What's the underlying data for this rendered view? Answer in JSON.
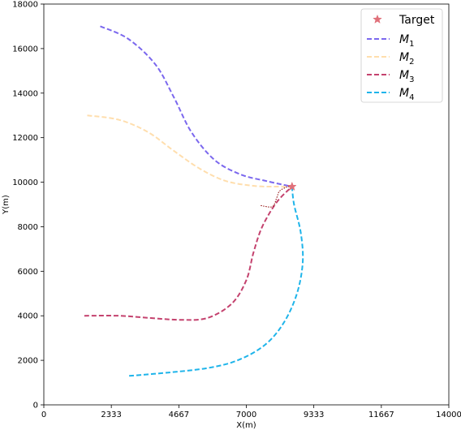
{
  "chart_data": {
    "type": "line",
    "title": "",
    "xlabel": "X(m)",
    "ylabel": "Y(m)",
    "xlim": [
      0,
      14000
    ],
    "ylim": [
      0,
      18000
    ],
    "x_ticks": [
      0,
      2333,
      4667,
      7000,
      9333,
      11667,
      14000
    ],
    "x_tick_labels": [
      "0",
      "2333",
      "4667",
      "7000",
      "9333",
      "11667",
      "14000"
    ],
    "y_ticks": [
      0,
      2000,
      4000,
      6000,
      8000,
      10000,
      12000,
      14000,
      16000,
      18000
    ],
    "y_tick_labels": [
      "0",
      "2000",
      "4000",
      "6000",
      "8000",
      "10000",
      "12000",
      "14000",
      "16000",
      "18000"
    ],
    "grid": false,
    "legend_position": "top-right",
    "target": {
      "name": "Target",
      "x": 8580,
      "y": 9800,
      "color": "#e0707a",
      "marker": "star"
    },
    "series": [
      {
        "name": "M1",
        "color": "#7b68ee",
        "style": "dashed",
        "x": [
          1950,
          2900,
          3850,
          4500,
          5100,
          5900,
          6800,
          7700,
          8580
        ],
        "y": [
          17000,
          16450,
          15300,
          13800,
          12250,
          11000,
          10350,
          10050,
          9800
        ]
      },
      {
        "name": "M2",
        "color": "#ffdead",
        "style": "dashed",
        "x": [
          1500,
          2600,
          3600,
          4500,
          5400,
          6300,
          7300,
          8100,
          8580
        ],
        "y": [
          13000,
          12800,
          12250,
          11400,
          10600,
          10050,
          9830,
          9800,
          9800
        ]
      },
      {
        "name": "M3",
        "color": "#c4426e",
        "style": "dashed",
        "x": [
          1400,
          2600,
          3700,
          4700,
          5650,
          6500,
          7000,
          7250,
          7550,
          8050,
          8580
        ],
        "y": [
          4000,
          4000,
          3900,
          3820,
          3900,
          4550,
          5600,
          6850,
          8000,
          9100,
          9800
        ]
      },
      {
        "name": "M4",
        "color": "#1eb4ea",
        "style": "dashed",
        "x": [
          2950,
          4300,
          5650,
          6700,
          7650,
          8300,
          8750,
          8950,
          8880,
          8650,
          8580
        ],
        "y": [
          1300,
          1450,
          1650,
          2000,
          2700,
          3700,
          5000,
          6400,
          7750,
          9000,
          9800
        ]
      }
    ],
    "extra_paths": [
      {
        "name": "",
        "color": "#8b0000",
        "style": "dotted",
        "x": [
          7500,
          7900,
          8050,
          8150,
          8400,
          8580
        ],
        "y": [
          8950,
          8900,
          9300,
          9600,
          9780,
          9800
        ]
      }
    ]
  }
}
